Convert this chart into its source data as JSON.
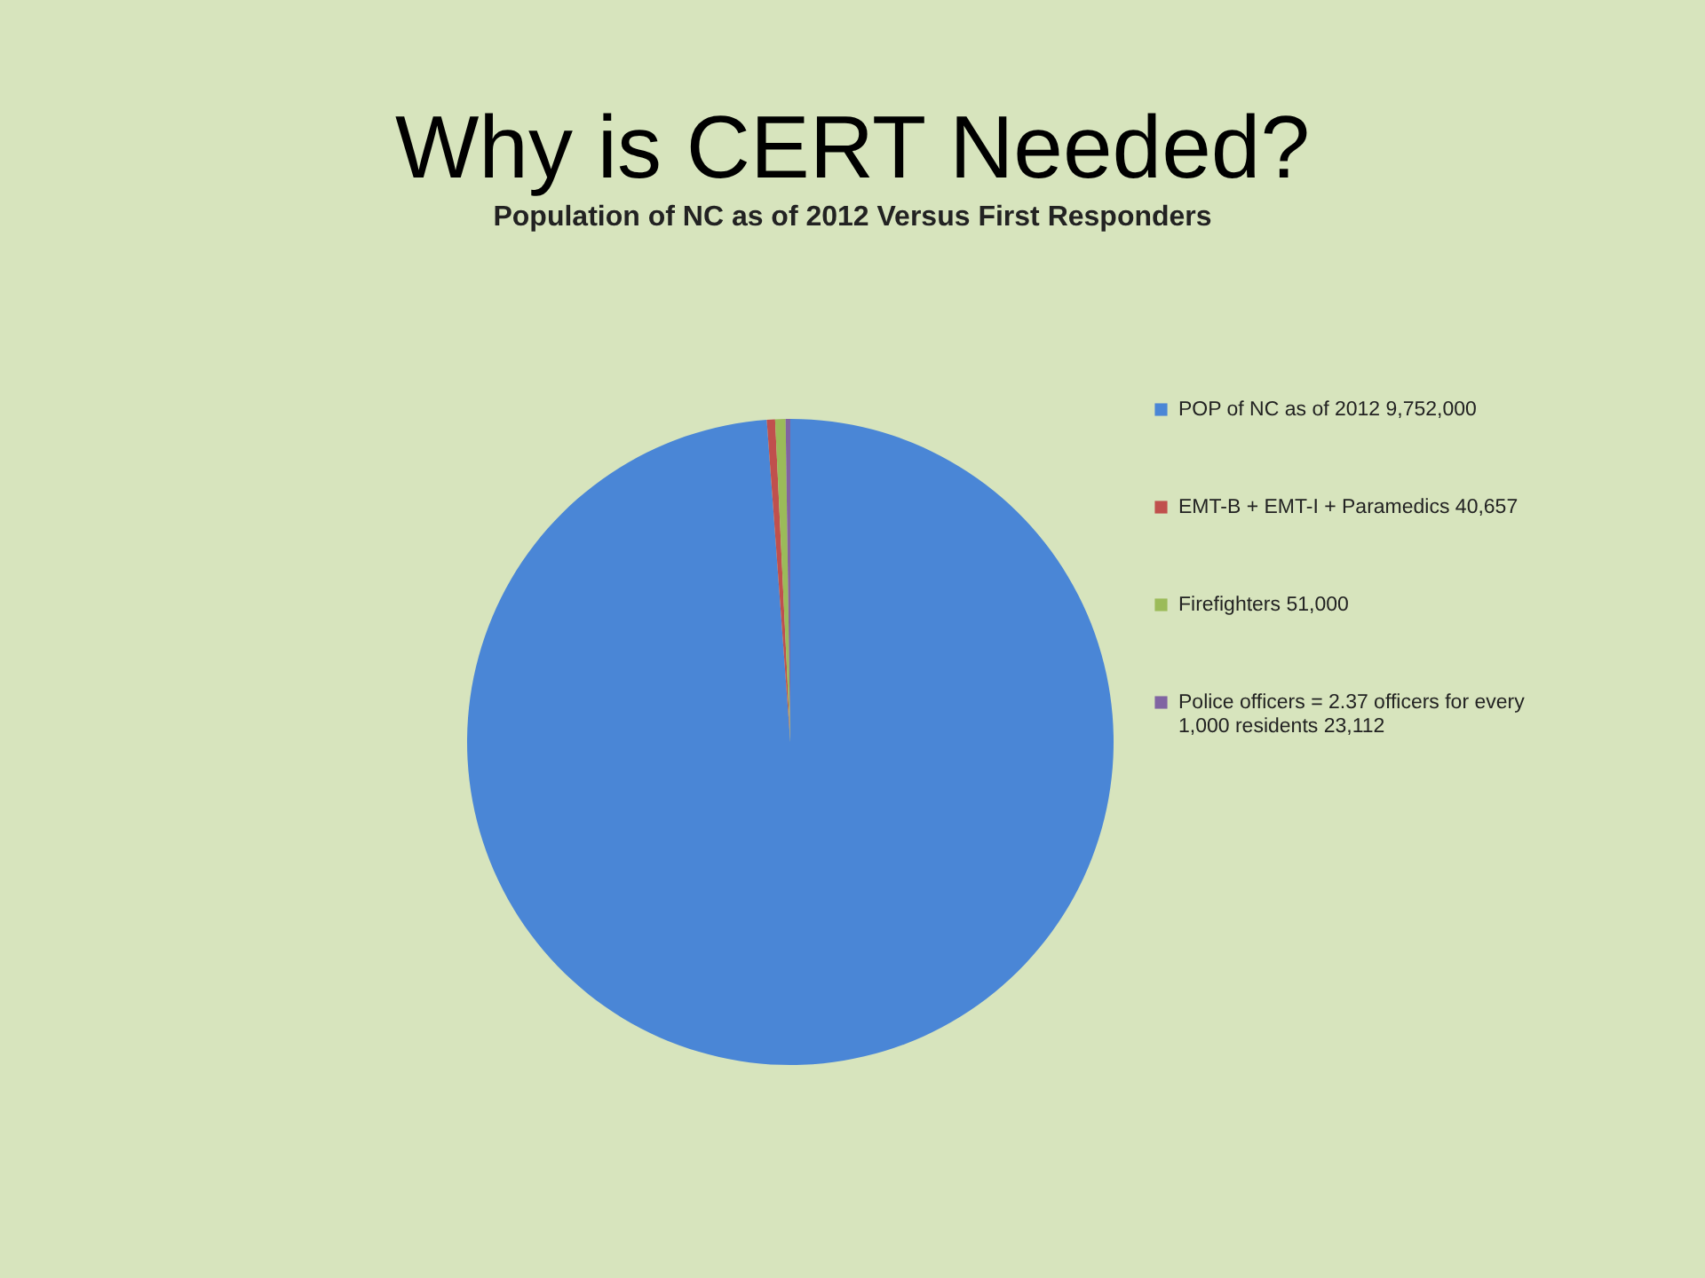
{
  "chart_data": {
    "type": "pie",
    "title": "Why is CERT Needed?",
    "subtitle": "Population of NC as of 2012 Versus First Responders",
    "categories": [
      "POP of NC as of 2012 9,752,000",
      "EMT-B + EMT-I + Paramedics 40,657",
      "Firefighters 51,000",
      "Police officers = 2.37 officers for every 1,000 residents 23,112"
    ],
    "values": [
      9752000,
      40657,
      51000,
      23112
    ],
    "colors": [
      "#4a86d6",
      "#c0504d",
      "#9bbb59",
      "#8064a2"
    ],
    "legend": "right"
  }
}
